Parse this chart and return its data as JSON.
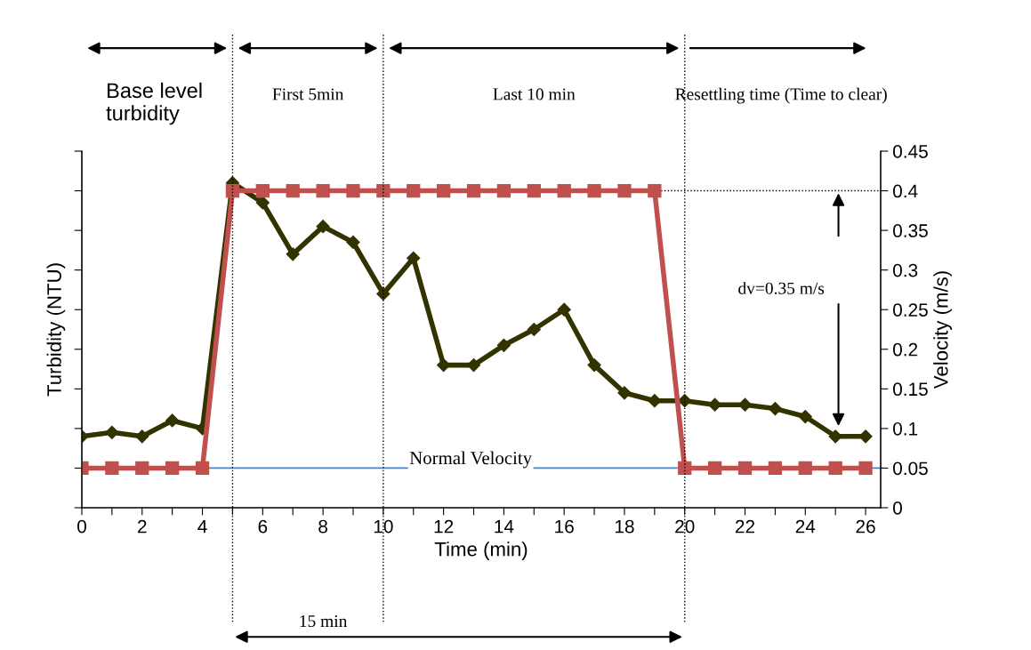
{
  "chart_data": {
    "type": "line",
    "xlabel": "Time (min)",
    "ylabel": "Turbidity (NTU)",
    "y2label": "Velocity (m/s)",
    "x": [
      0,
      1,
      2,
      3,
      4,
      5,
      6,
      7,
      8,
      9,
      10,
      11,
      12,
      13,
      14,
      15,
      16,
      17,
      18,
      19,
      20,
      21,
      22,
      23,
      24,
      25,
      26
    ],
    "series": [
      {
        "color": "#333300",
        "marker": "diamond",
        "axis": "y2",
        "values": [
          0.09,
          0.095,
          0.09,
          0.11,
          0.1,
          0.41,
          0.385,
          0.32,
          0.355,
          0.335,
          0.27,
          0.315,
          0.18,
          0.18,
          0.205,
          0.225,
          0.25,
          0.18,
          0.145,
          0.135,
          0.135,
          0.13,
          0.13,
          0.125,
          0.115,
          0.09,
          0.09
        ]
      },
      {
        "color": "#c0504d",
        "marker": "square",
        "axis": "y2",
        "values": [
          0.05,
          0.05,
          0.05,
          0.05,
          0.05,
          0.4,
          0.4,
          0.4,
          0.4,
          0.4,
          0.4,
          0.4,
          0.4,
          0.4,
          0.4,
          0.4,
          0.4,
          0.4,
          0.4,
          0.4,
          0.05,
          0.05,
          0.05,
          0.05,
          0.05,
          0.05,
          0.05
        ]
      }
    ],
    "xlim": [
      0,
      26.5
    ],
    "xticks": [
      0,
      {
        "value": 1,
        "label": null
      },
      2,
      {
        "value": 3,
        "label": null
      },
      4,
      {
        "value": 5,
        "label": null
      },
      6,
      {
        "value": 7,
        "label": null
      },
      8,
      {
        "value": 9,
        "label": null
      },
      10,
      {
        "value": 11,
        "label": null
      },
      12,
      {
        "value": 13,
        "label": null
      },
      14,
      {
        "value": 15,
        "label": null
      },
      16,
      {
        "value": 17,
        "label": null
      },
      18,
      {
        "value": 19,
        "label": null
      },
      20,
      {
        "value": 21,
        "label": null
      },
      22,
      {
        "value": 23,
        "label": null
      },
      24,
      {
        "value": 25,
        "label": null
      },
      26
    ],
    "y2lim": [
      0,
      0.45
    ],
    "y2ticks": [
      0,
      0.05,
      0.1,
      0.15,
      0.2,
      0.25,
      0.3,
      0.35,
      0.4,
      0.45
    ],
    "grid": false,
    "legend": false,
    "line_style": "solid",
    "ref_lines": [
      {
        "axis": "x",
        "value": 5,
        "line_style": "dotted",
        "color": "#000000"
      },
      {
        "axis": "x",
        "value": 10,
        "line_style": "dotted",
        "color": "#000000"
      },
      {
        "axis": "x",
        "value": 20,
        "line_style": "dotted",
        "color": "#000000"
      },
      {
        "axis": "y2",
        "value": 0.4,
        "line_style": "dotted",
        "color": "#000000"
      },
      {
        "axis": "y2",
        "value": 0.05,
        "label": "Normal Velocity",
        "line_style": "solid",
        "color": "#4f81bd"
      }
    ],
    "annotations": [
      "Base level\nturbidity",
      "First 5min",
      "Last 10 min",
      "Resettling time (Time to clear)",
      "dv=0.35 m/s",
      "15 min"
    ]
  }
}
